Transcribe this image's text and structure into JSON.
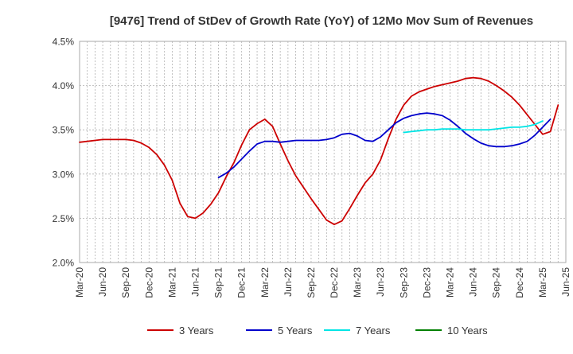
{
  "chart_data": {
    "type": "line",
    "title": "[9476]  Trend of StDev of Growth Rate (YoY) of 12Mo Mov Sum of Revenues",
    "xlabel": "",
    "ylabel": "",
    "ylim": [
      2.0,
      4.5
    ],
    "y_ticks": [
      "2.0%",
      "2.5%",
      "3.0%",
      "3.5%",
      "4.0%",
      "4.5%"
    ],
    "y_tick_values": [
      2.0,
      2.5,
      3.0,
      3.5,
      4.0,
      4.5
    ],
    "x_tick_labels": [
      "Mar-20",
      "Jun-20",
      "Sep-20",
      "Dec-20",
      "Mar-21",
      "Jun-21",
      "Sep-21",
      "Dec-21",
      "Mar-22",
      "Jun-22",
      "Sep-22",
      "Dec-22",
      "Mar-23",
      "Jun-23",
      "Sep-23",
      "Dec-23",
      "Mar-24",
      "Jun-24",
      "Sep-24",
      "Dec-24",
      "Mar-25",
      "Jun-25"
    ],
    "x_months": [
      "Mar-20",
      "Apr-20",
      "May-20",
      "Jun-20",
      "Jul-20",
      "Aug-20",
      "Sep-20",
      "Oct-20",
      "Nov-20",
      "Dec-20",
      "Jan-21",
      "Feb-21",
      "Mar-21",
      "Apr-21",
      "May-21",
      "Jun-21",
      "Jul-21",
      "Aug-21",
      "Sep-21",
      "Oct-21",
      "Nov-21",
      "Dec-21",
      "Jan-22",
      "Feb-22",
      "Mar-22",
      "Apr-22",
      "May-22",
      "Jun-22",
      "Jul-22",
      "Aug-22",
      "Sep-22",
      "Oct-22",
      "Nov-22",
      "Dec-22",
      "Jan-23",
      "Feb-23",
      "Mar-23",
      "Apr-23",
      "May-23",
      "Jun-23",
      "Jul-23",
      "Aug-23",
      "Sep-23",
      "Oct-23",
      "Nov-23",
      "Dec-23",
      "Jan-24",
      "Feb-24",
      "Mar-24",
      "Apr-24",
      "May-24",
      "Jun-24",
      "Jul-24",
      "Aug-24",
      "Sep-24",
      "Oct-24",
      "Nov-24",
      "Dec-24",
      "Jan-25",
      "Feb-25",
      "Mar-25",
      "Apr-25",
      "May-25",
      "Jun-25"
    ],
    "series": [
      {
        "name": "3 Years",
        "color": "#cc0000",
        "start_index": 0,
        "values": [
          3.36,
          3.37,
          3.38,
          3.39,
          3.39,
          3.39,
          3.39,
          3.38,
          3.35,
          3.3,
          3.22,
          3.1,
          2.93,
          2.67,
          2.52,
          2.5,
          2.56,
          2.66,
          2.79,
          2.97,
          3.13,
          3.33,
          3.5,
          3.57,
          3.62,
          3.54,
          3.34,
          3.15,
          2.98,
          2.85,
          2.72,
          2.6,
          2.48,
          2.43,
          2.47,
          2.61,
          2.76,
          2.9,
          3.0,
          3.16,
          3.4,
          3.62,
          3.78,
          3.88,
          3.93,
          3.96,
          3.99,
          4.01,
          4.03,
          4.05,
          4.08,
          4.09,
          4.08,
          4.05,
          4.0,
          3.94,
          3.87,
          3.78,
          3.67,
          3.56,
          3.45,
          3.48,
          3.78
        ]
      },
      {
        "name": "5 Years",
        "color": "#0000cc",
        "start_index": 18,
        "values": [
          2.96,
          3.01,
          3.08,
          3.17,
          3.26,
          3.34,
          3.37,
          3.37,
          3.36,
          3.37,
          3.38,
          3.38,
          3.38,
          3.38,
          3.39,
          3.41,
          3.45,
          3.46,
          3.43,
          3.38,
          3.37,
          3.42,
          3.5,
          3.58,
          3.63,
          3.66,
          3.68,
          3.69,
          3.68,
          3.66,
          3.61,
          3.54,
          3.46,
          3.4,
          3.35,
          3.32,
          3.31,
          3.31,
          3.32,
          3.34,
          3.37,
          3.44,
          3.53,
          3.62
        ]
      },
      {
        "name": "7 Years",
        "color": "#00e5e5",
        "start_index": 42,
        "values": [
          3.47,
          3.48,
          3.49,
          3.5,
          3.5,
          3.51,
          3.51,
          3.51,
          3.5,
          3.5,
          3.5,
          3.5,
          3.51,
          3.52,
          3.53,
          3.53,
          3.54,
          3.56,
          3.6
        ]
      },
      {
        "name": "10 Years",
        "color": "#008000",
        "start_index": 0,
        "values": []
      }
    ],
    "legend": [
      "3 Years",
      "5 Years",
      "7 Years",
      "10 Years"
    ],
    "legend_position": "bottom",
    "grid": true
  }
}
